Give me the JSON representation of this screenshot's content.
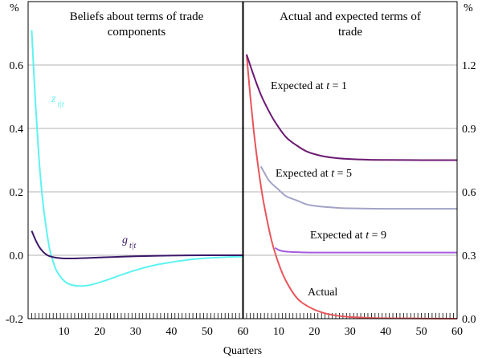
{
  "chart_data": [
    {
      "type": "line",
      "panel": "left",
      "title": "Beliefs about terms of trade components",
      "title_lines": [
        "Beliefs about terms of trade",
        "components"
      ],
      "ylabel": "%",
      "xlabel": "Quarters",
      "xlim": [
        0,
        60
      ],
      "ylim": [
        -0.2,
        0.8
      ],
      "x_ticks": [
        10,
        20,
        30,
        40,
        50,
        60
      ],
      "y_ticks": [
        -0.2,
        0.0,
        0.2,
        0.4,
        0.6
      ],
      "y_tick_labels": [
        "-0.2",
        "0.0",
        "0.2",
        "0.4",
        "0.6"
      ],
      "series": [
        {
          "name": "z t|t",
          "label_main": "z",
          "label_sub": "t|t",
          "color": "#5ef2f2",
          "x": [
            1,
            2,
            3,
            4,
            5,
            6,
            7,
            8,
            10,
            12,
            15,
            18,
            22,
            26,
            30,
            35,
            40,
            45,
            50,
            55,
            60
          ],
          "y": [
            0.71,
            0.49,
            0.31,
            0.18,
            0.09,
            0.02,
            -0.02,
            -0.05,
            -0.08,
            -0.093,
            -0.097,
            -0.092,
            -0.078,
            -0.062,
            -0.047,
            -0.032,
            -0.022,
            -0.014,
            -0.009,
            -0.006,
            -0.004
          ]
        },
        {
          "name": "g t|t",
          "label_main": "g",
          "label_sub": "t|t",
          "color": "#3a1868",
          "x": [
            1,
            2,
            3,
            4,
            5,
            6,
            8,
            10,
            13,
            16,
            20,
            25,
            30,
            40,
            50,
            60
          ],
          "y": [
            0.077,
            0.05,
            0.028,
            0.013,
            0.003,
            -0.003,
            -0.008,
            -0.01,
            -0.01,
            -0.009,
            -0.007,
            -0.005,
            -0.003,
            -0.001,
            0.0,
            0.0
          ]
        }
      ]
    },
    {
      "type": "line",
      "panel": "right",
      "title": "Actual and expected terms of trade",
      "title_lines": [
        "Actual and expected terms of",
        "trade"
      ],
      "ylabel": "%",
      "xlabel": "Quarters",
      "xlim": [
        0,
        60
      ],
      "ylim": [
        0.0,
        1.5
      ],
      "x_ticks": [
        10,
        20,
        30,
        40,
        50,
        60
      ],
      "y_ticks": [
        0.0,
        0.3,
        0.6,
        0.9,
        1.2
      ],
      "y_tick_labels": [
        "0.0",
        "0.3",
        "0.6",
        "0.9",
        "1.2"
      ],
      "series": [
        {
          "name": "Actual",
          "color": "#e8555a",
          "x": [
            1,
            2,
            3,
            4,
            5,
            6,
            8,
            10,
            12,
            15,
            18,
            22,
            26,
            30,
            35,
            40,
            50,
            60
          ],
          "y": [
            1.25,
            1.06,
            0.89,
            0.75,
            0.63,
            0.53,
            0.37,
            0.26,
            0.18,
            0.1,
            0.06,
            0.03,
            0.015,
            0.008,
            0.004,
            0.002,
            0.001,
            0.0
          ]
        },
        {
          "name": "Expected at t = 1",
          "label_prefix": "Expected at ",
          "label_var": "t",
          "label_suffix": " = 1",
          "color": "#6b1a72",
          "x": [
            1,
            3,
            5,
            7,
            9,
            12,
            15,
            18,
            22,
            26,
            30,
            35,
            40,
            50,
            60
          ],
          "y": [
            1.25,
            1.15,
            1.06,
            0.99,
            0.93,
            0.86,
            0.82,
            0.79,
            0.77,
            0.76,
            0.755,
            0.752,
            0.751,
            0.75,
            0.75
          ]
        },
        {
          "name": "Expected at t = 5",
          "label_prefix": "Expected at ",
          "label_var": "t",
          "label_suffix": " = 5",
          "color": "#a3a3c8",
          "x": [
            5,
            6,
            7,
            8,
            10,
            12,
            15,
            18,
            22,
            26,
            30,
            40,
            50,
            60
          ],
          "y": [
            0.72,
            0.69,
            0.66,
            0.64,
            0.61,
            0.58,
            0.56,
            0.54,
            0.53,
            0.525,
            0.522,
            0.52,
            0.52,
            0.52
          ]
        },
        {
          "name": "Expected at t = 9",
          "label_prefix": "Expected at ",
          "label_var": "t",
          "label_suffix": " = 9",
          "color": "#a55be0",
          "x": [
            9,
            10,
            11,
            13,
            16,
            20,
            30,
            40,
            50,
            60
          ],
          "y": [
            0.335,
            0.325,
            0.32,
            0.316,
            0.314,
            0.313,
            0.313,
            0.313,
            0.313,
            0.313
          ]
        }
      ]
    }
  ]
}
